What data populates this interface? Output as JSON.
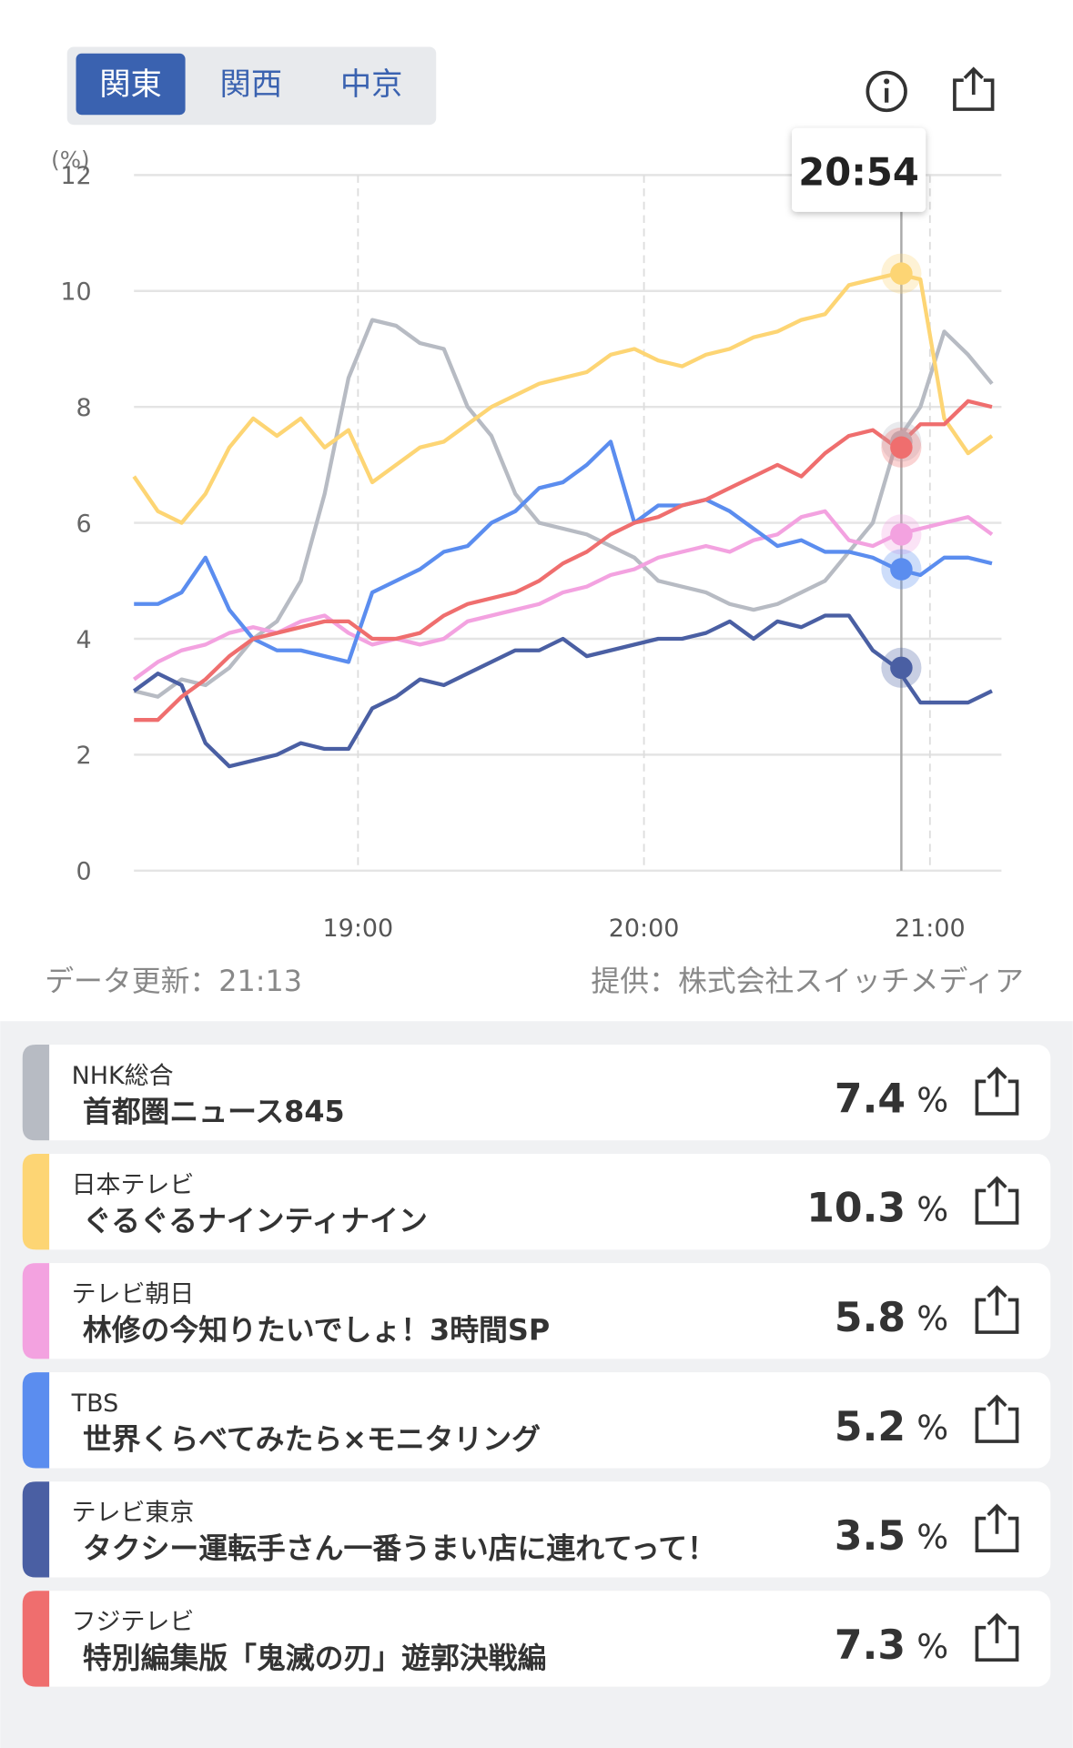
{
  "tabs": {
    "items": [
      "関東",
      "関西",
      "中京"
    ],
    "selected": 0
  },
  "chart_data": {
    "type": "line",
    "y_label": "(%)",
    "x": [
      1093,
      1098,
      1103,
      1108,
      1113,
      1118,
      1123,
      1128,
      1133,
      1138,
      1143,
      1148,
      1153,
      1158,
      1163,
      1168,
      1173,
      1178,
      1183,
      1188,
      1193,
      1198,
      1203,
      1208,
      1213,
      1218,
      1223,
      1228,
      1233,
      1238,
      1243,
      1248,
      1253,
      1258,
      1263,
      1268,
      1273
    ],
    "xlim": [
      1093,
      1275
    ],
    "xticks": [
      {
        "value": 1140,
        "label": "19:00"
      },
      {
        "value": 1200,
        "label": "20:00"
      },
      {
        "value": 1260,
        "label": "21:00"
      }
    ],
    "ylim": [
      0,
      12
    ],
    "yticks": [
      0,
      2,
      4,
      6,
      8,
      10,
      12
    ],
    "grid": true,
    "cursor": {
      "x": 1254,
      "label": "20:54"
    },
    "series": [
      {
        "color": "#b7bbc3",
        "values": [
          3.1,
          3.0,
          3.3,
          3.2,
          3.5,
          4.0,
          4.3,
          5.0,
          6.5,
          8.5,
          9.5,
          9.4,
          9.1,
          9.0,
          8.0,
          7.5,
          6.5,
          6.0,
          5.9,
          5.8,
          5.6,
          5.4,
          5.0,
          4.9,
          4.8,
          4.6,
          4.5,
          4.6,
          4.8,
          5.0,
          5.5,
          6.0,
          7.4,
          8.0,
          9.3,
          8.9,
          8.4
        ]
      },
      {
        "color": "#fdd574",
        "values": [
          6.8,
          6.2,
          6.0,
          6.5,
          7.3,
          7.8,
          7.5,
          7.8,
          7.3,
          7.6,
          6.7,
          7.0,
          7.3,
          7.4,
          7.7,
          8.0,
          8.2,
          8.4,
          8.5,
          8.6,
          8.9,
          9.0,
          8.8,
          8.7,
          8.9,
          9.0,
          9.2,
          9.3,
          9.5,
          9.6,
          10.1,
          10.2,
          10.3,
          10.2,
          7.8,
          7.2,
          7.5
        ]
      },
      {
        "color": "#f3a2e0",
        "values": [
          3.3,
          3.6,
          3.8,
          3.9,
          4.1,
          4.2,
          4.1,
          4.3,
          4.4,
          4.1,
          3.9,
          4.0,
          3.9,
          4.0,
          4.3,
          4.4,
          4.5,
          4.6,
          4.8,
          4.9,
          5.1,
          5.2,
          5.4,
          5.5,
          5.6,
          5.5,
          5.7,
          5.8,
          6.1,
          6.2,
          5.7,
          5.6,
          5.8,
          5.9,
          6.0,
          6.1,
          5.8
        ]
      },
      {
        "color": "#5b8def",
        "values": [
          4.6,
          4.6,
          4.8,
          5.4,
          4.5,
          4.0,
          3.8,
          3.8,
          3.7,
          3.6,
          4.8,
          5.0,
          5.2,
          5.5,
          5.6,
          6.0,
          6.2,
          6.6,
          6.7,
          7.0,
          7.4,
          6.0,
          6.3,
          6.3,
          6.4,
          6.2,
          5.9,
          5.6,
          5.7,
          5.5,
          5.5,
          5.4,
          5.2,
          5.1,
          5.4,
          5.4,
          5.3
        ]
      },
      {
        "color": "#4a5fa3",
        "values": [
          3.1,
          3.4,
          3.2,
          2.2,
          1.8,
          1.9,
          2.0,
          2.2,
          2.1,
          2.1,
          2.8,
          3.0,
          3.3,
          3.2,
          3.4,
          3.6,
          3.8,
          3.8,
          4.0,
          3.7,
          3.8,
          3.9,
          4.0,
          4.0,
          4.1,
          4.3,
          4.0,
          4.3,
          4.2,
          4.4,
          4.4,
          3.8,
          3.5,
          2.9,
          2.9,
          2.9,
          3.1
        ]
      },
      {
        "color": "#ef6e6e",
        "values": [
          2.6,
          2.6,
          3.0,
          3.3,
          3.7,
          4.0,
          4.1,
          4.2,
          4.3,
          4.3,
          4.0,
          4.0,
          4.1,
          4.4,
          4.6,
          4.7,
          4.8,
          5.0,
          5.3,
          5.5,
          5.8,
          6.0,
          6.1,
          6.3,
          6.4,
          6.6,
          6.8,
          7.0,
          6.8,
          7.2,
          7.5,
          7.6,
          7.3,
          7.7,
          7.7,
          8.1,
          8.0
        ]
      }
    ]
  },
  "footer": {
    "updated": "データ更新：21:13",
    "source": "提供：株式会社スイッチメディア"
  },
  "unit": "%",
  "programs": [
    {
      "channel": "NHK総合",
      "title": "首都圏ニュース845",
      "rating": 7.4
    },
    {
      "channel": "日本テレビ",
      "title": "ぐるぐるナインティナイン",
      "rating": 10.3
    },
    {
      "channel": "テレビ朝日",
      "title": "林修の今知りたいでしょ！3時間SP",
      "rating": 5.8
    },
    {
      "channel": "TBS",
      "title": "世界くらべてみたら×モニタリング",
      "rating": 5.2
    },
    {
      "channel": "テレビ東京",
      "title": "タクシー運転手さん一番うまい店に連れてって！",
      "rating": 3.5
    },
    {
      "channel": "フジテレビ",
      "title": "特別編集版「鬼滅の刃」遊郭決戦編",
      "rating": 7.3
    }
  ]
}
